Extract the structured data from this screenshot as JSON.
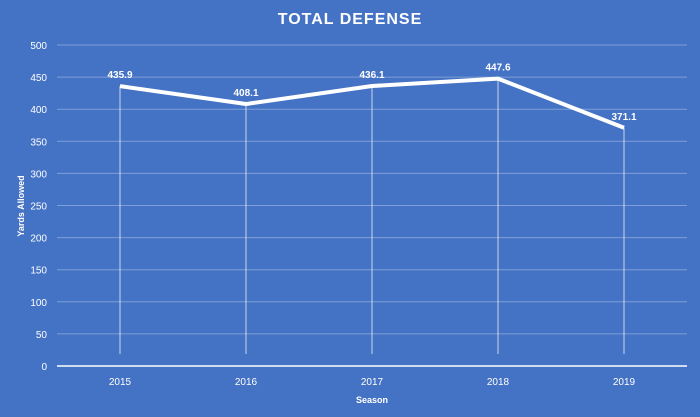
{
  "chart_data": {
    "type": "line",
    "title": "TOTAL DEFENSE",
    "xlabel": "Season",
    "ylabel": "Yards Allowed",
    "categories": [
      "2015",
      "2016",
      "2017",
      "2018",
      "2019"
    ],
    "values": [
      435.9,
      408.1,
      436.1,
      447.6,
      371.1
    ],
    "data_labels": [
      "435.9",
      "408.1",
      "436.1",
      "447.6",
      "371.1"
    ],
    "ylim": [
      0,
      500
    ],
    "yticks": [
      0,
      50,
      100,
      150,
      200,
      250,
      300,
      350,
      400,
      450,
      500
    ],
    "grid": true,
    "drop_lines": true,
    "legend": "none",
    "colors": {
      "background": "#4472C4",
      "line": "#FFFFFF",
      "grid": "#7F9FD8"
    }
  }
}
